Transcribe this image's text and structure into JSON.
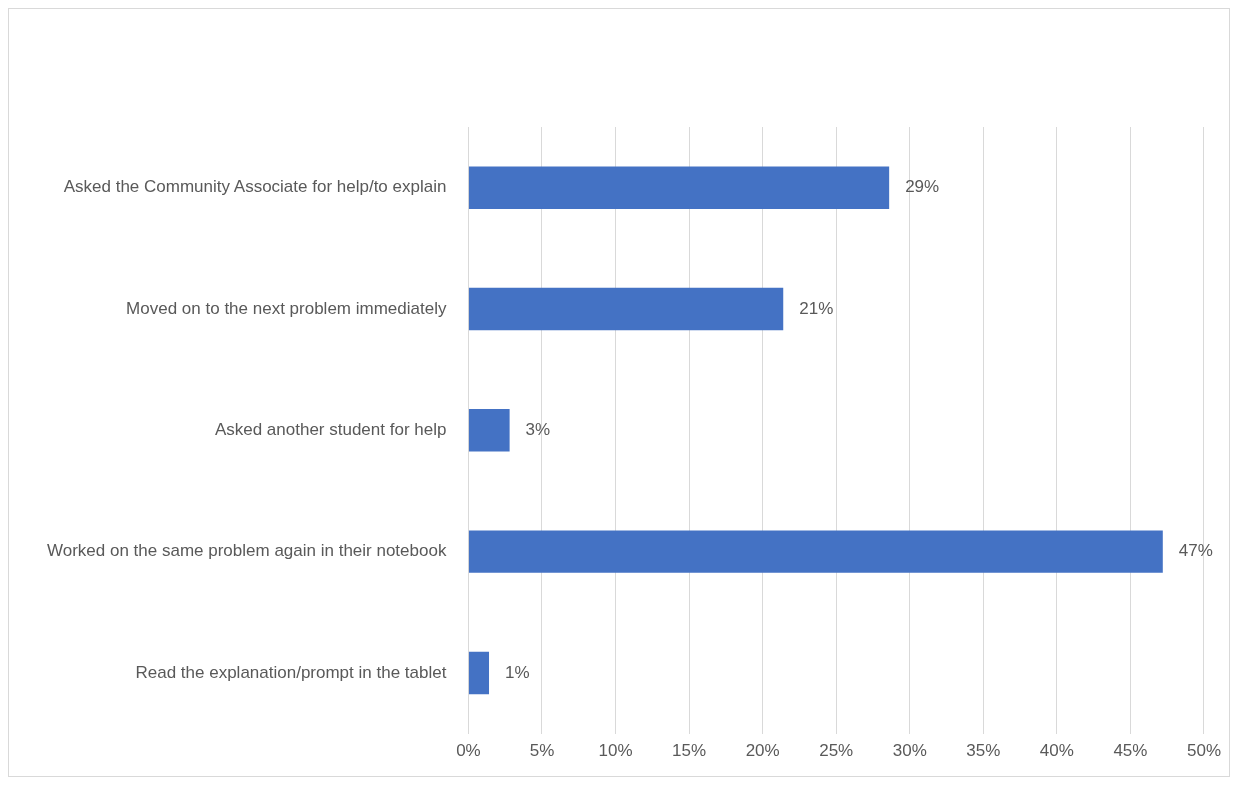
{
  "chart_data": {
    "type": "bar",
    "orientation": "horizontal",
    "categories": [
      "Asked the Community Associate for help/to explain",
      "Moved on to the next problem immediately",
      "Asked another student for help",
      "Worked on the same problem again in their notebook",
      "Read the explanation/prompt in the tablet"
    ],
    "values": [
      28.6,
      21.4,
      2.8,
      47.2,
      1.4
    ],
    "value_labels": [
      "29%",
      "21%",
      "3%",
      "47%",
      "1%"
    ],
    "color": "#4472c4",
    "xlim": [
      0,
      50
    ],
    "xticks": [
      {
        "value": 0,
        "label": "0%"
      },
      {
        "value": 5,
        "label": "5%"
      },
      {
        "value": 10,
        "label": "10%"
      },
      {
        "value": 15,
        "label": "15%"
      },
      {
        "value": 20,
        "label": "20%"
      },
      {
        "value": 25,
        "label": "25%"
      },
      {
        "value": 30,
        "label": "30%"
      },
      {
        "value": 35,
        "label": "35%"
      },
      {
        "value": 40,
        "label": "40%"
      },
      {
        "value": 45,
        "label": "45%"
      },
      {
        "value": 50,
        "label": "50%"
      }
    ],
    "grid": "x",
    "legend": false
  }
}
